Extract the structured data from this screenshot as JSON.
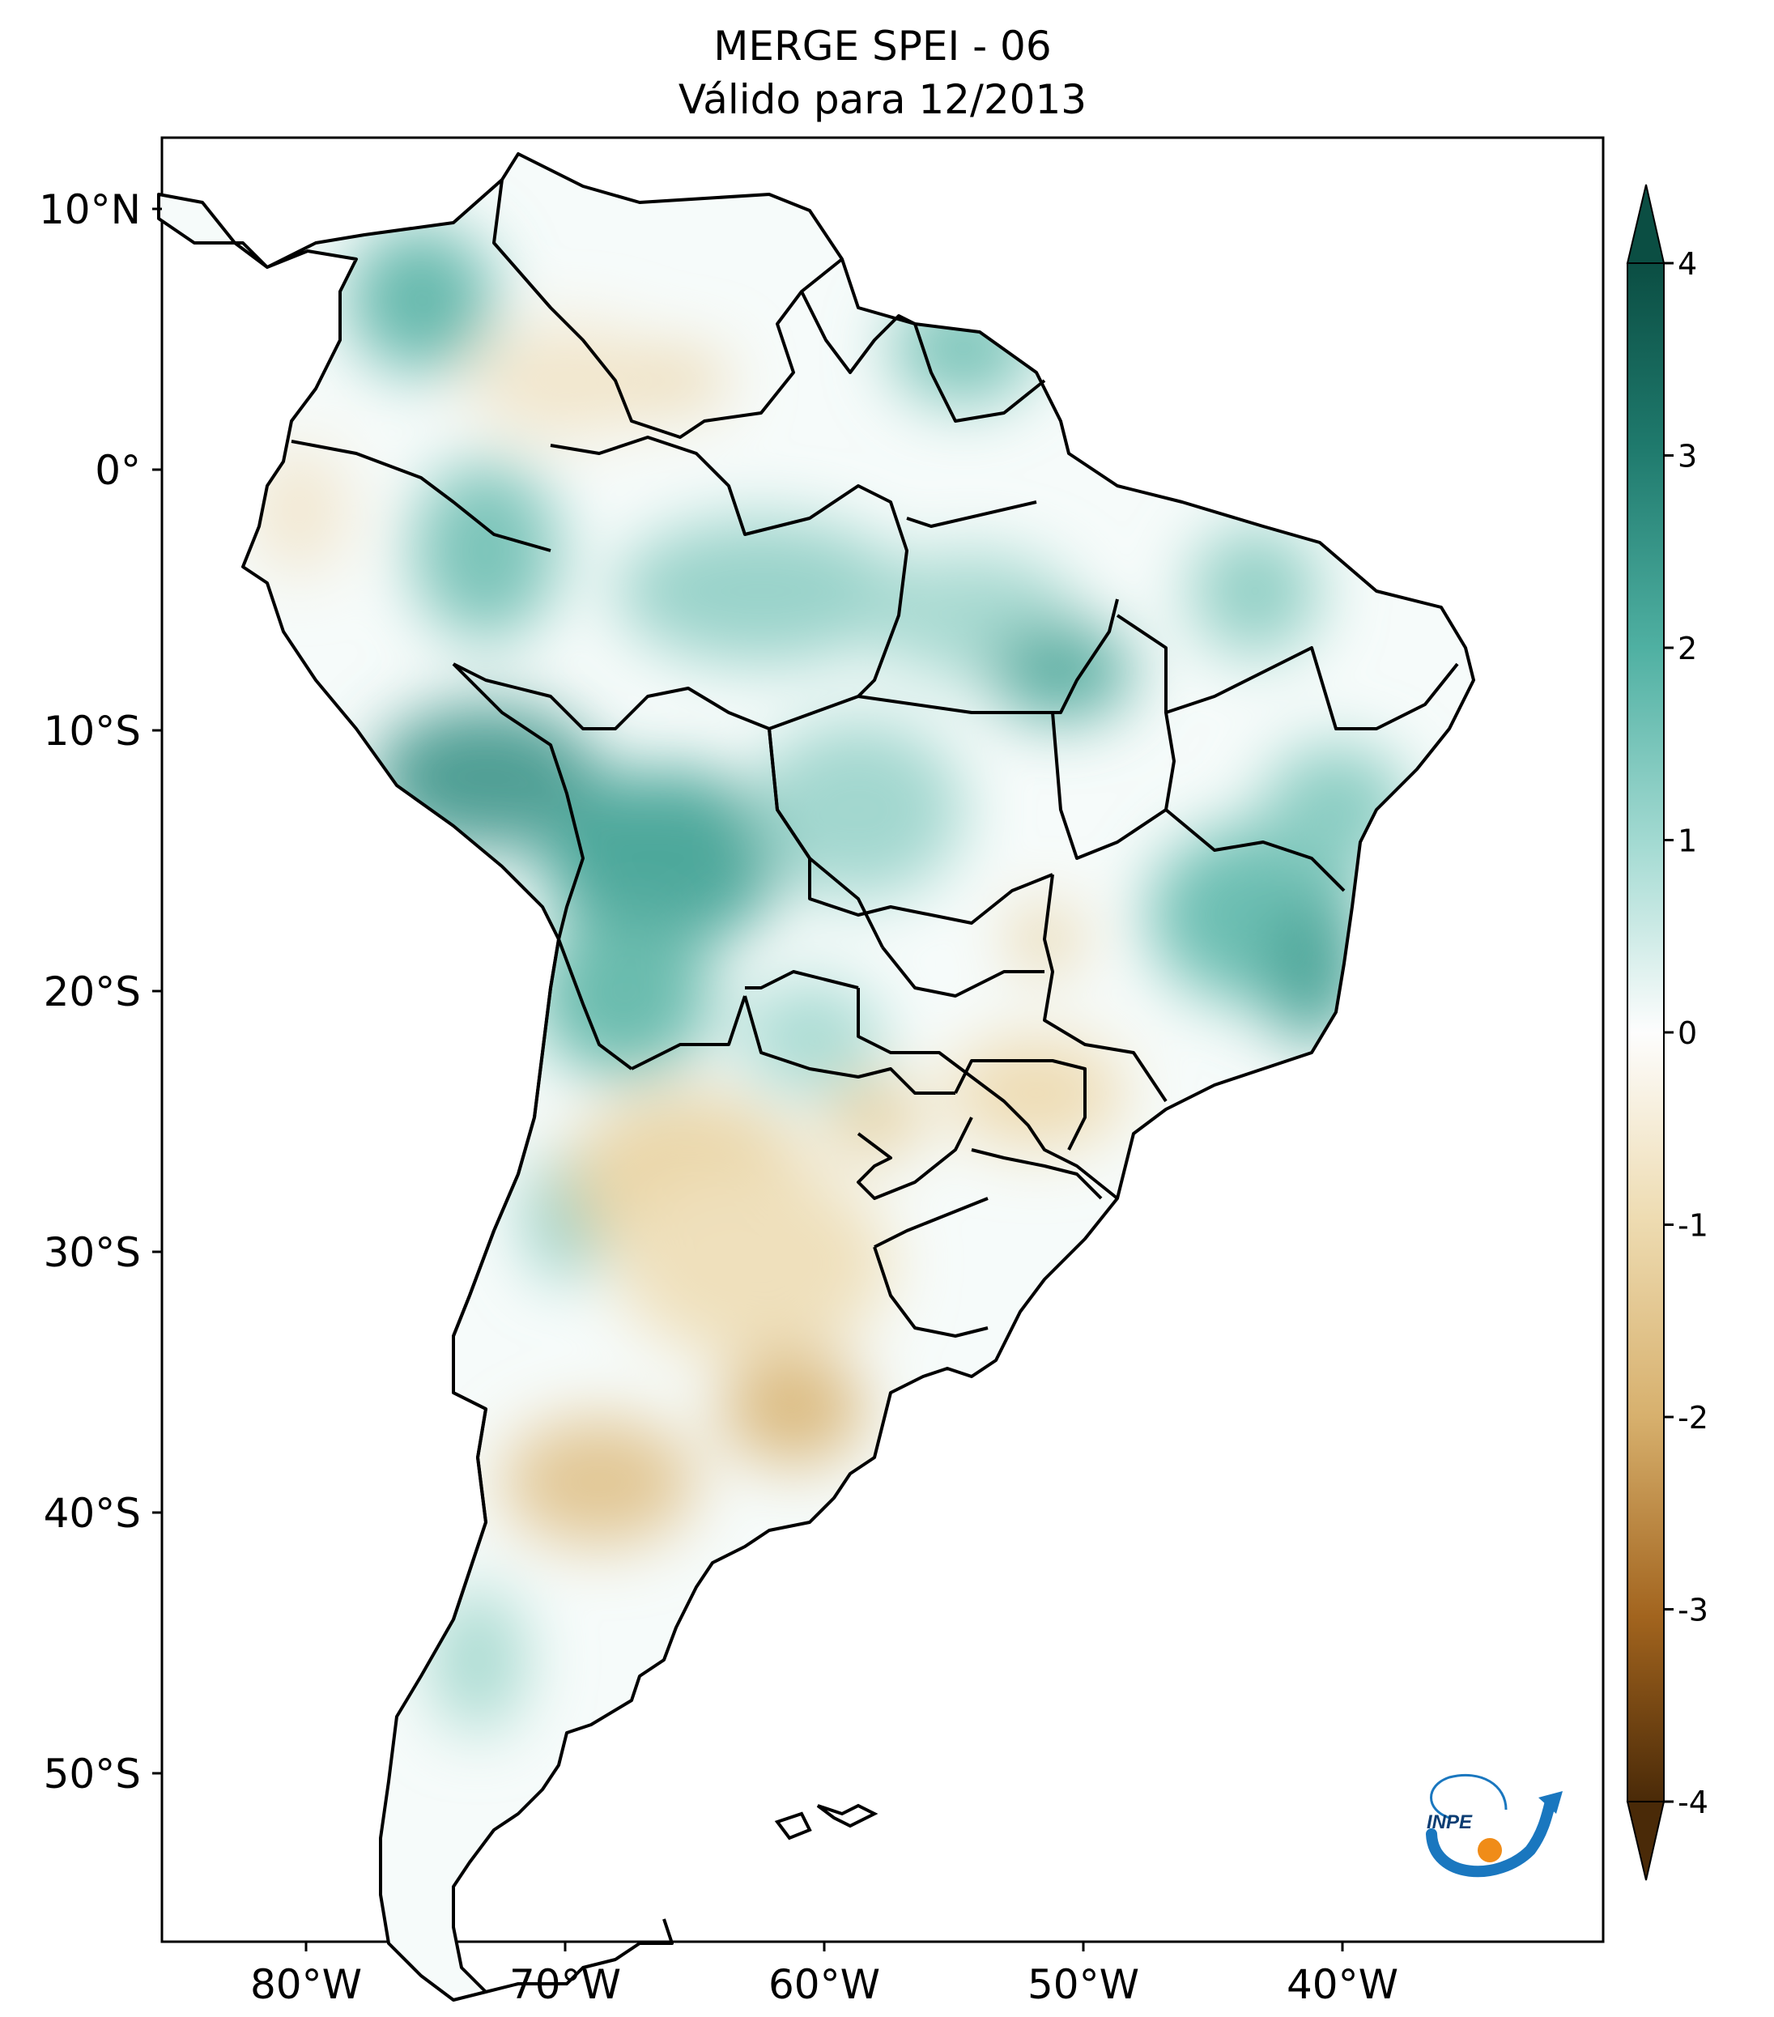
{
  "title": {
    "line1": "MERGE   SPEI - 06",
    "line2": "Válido para 12/2013"
  },
  "map": {
    "region": "South America",
    "variable": "SPEI - 06",
    "lat_ticks": [
      "10°N",
      "0°",
      "10°S",
      "20°S",
      "30°S",
      "40°S",
      "50°S"
    ],
    "lon_ticks": [
      "80°W",
      "70°W",
      "60°W",
      "50°W",
      "40°W"
    ],
    "lat_range_deg": [
      -56,
      13
    ],
    "lon_range_deg": [
      -85,
      -30
    ]
  },
  "colorbar": {
    "ticks": [
      "4",
      "3",
      "2",
      "1",
      "0",
      "-1",
      "-2",
      "-3",
      "-4"
    ],
    "range": [
      -4,
      4
    ],
    "extend": "both",
    "colormap": "BrBG",
    "colors": {
      "max": "#0b4e43",
      "high": "#2f9487",
      "mid_high": "#9fd8cf",
      "zero": "#fdfdfd",
      "mid_low": "#e8d3a2",
      "low": "#b5782b",
      "min": "#4a2a08"
    }
  },
  "logo": {
    "text": "INPE",
    "colors": {
      "arc": "#1a77bf",
      "dot": "#f08c18"
    }
  }
}
